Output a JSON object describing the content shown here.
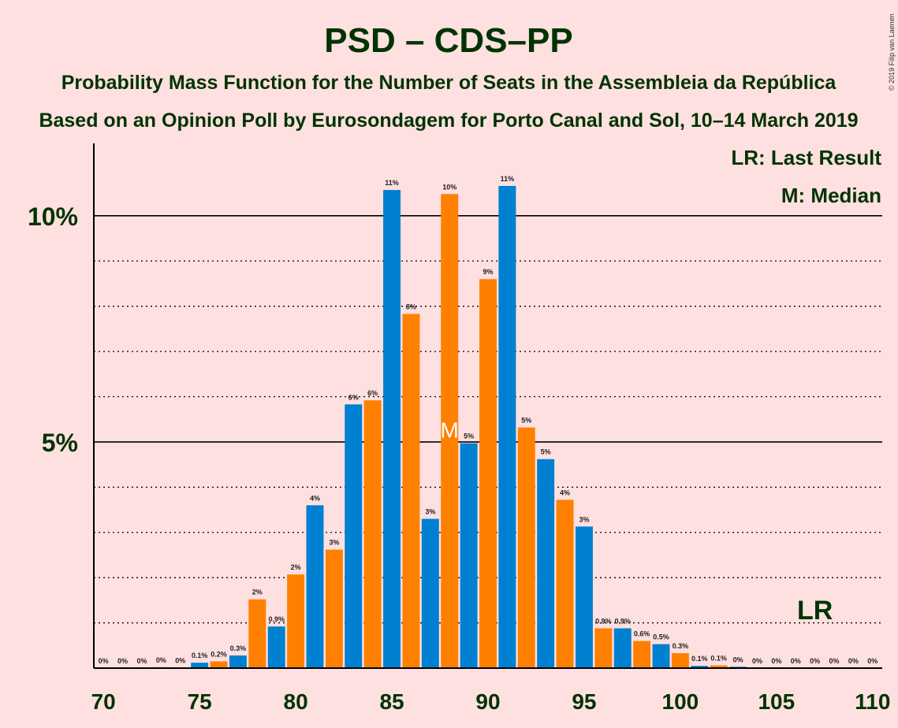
{
  "chart_data": {
    "type": "bar",
    "title": "PSD – CDS–PP",
    "subtitle": "Probability Mass Function for the Number of Seats in the Assembleia da República",
    "subtitle2": "Based on an Opinion Poll by Eurosondagem for Porto Canal and Sol, 10–14 March 2019",
    "copyright": "© 2019 Filip van Laenen",
    "legend": [
      "LR: Last Result",
      "M: Median"
    ],
    "ylim": [
      0,
      11.6
    ],
    "y_ticks": [
      {
        "value": 5,
        "label": "5%"
      },
      {
        "value": 10,
        "label": "10%"
      }
    ],
    "x_ticks": [
      70,
      75,
      80,
      85,
      90,
      95,
      100,
      105,
      110
    ],
    "median_seat": 88,
    "median_marker": "M",
    "last_result_seat": 107,
    "last_result_label": "LR",
    "colors": {
      "blue": "#0080D0",
      "orange": "#FF8000",
      "background": "#FFE0E0",
      "text": "#003300"
    },
    "seats": [
      70,
      71,
      72,
      73,
      74,
      75,
      76,
      77,
      78,
      79,
      80,
      81,
      82,
      83,
      84,
      85,
      86,
      87,
      88,
      89,
      90,
      91,
      92,
      93,
      94,
      95,
      96,
      97,
      98,
      99,
      100,
      101,
      102,
      103,
      104,
      105,
      106,
      107,
      108,
      109,
      110
    ],
    "values": [
      0,
      0,
      0,
      0.02,
      0.01,
      0.12,
      0.15,
      0.28,
      1.52,
      0.92,
      2.07,
      3.6,
      2.62,
      5.83,
      5.92,
      10.57,
      7.83,
      3.3,
      10.48,
      4.97,
      8.6,
      10.66,
      5.32,
      4.62,
      3.72,
      3.13,
      0.88,
      0.88,
      0.6,
      0.53,
      0.33,
      0.05,
      0.06,
      0.03,
      0,
      0,
      0,
      0,
      0,
      0,
      0
    ],
    "labels": [
      "0%",
      "0%",
      "0%",
      "0%",
      "0%",
      "0.1%",
      "0.2%",
      "0.3%",
      "2%",
      "0.9%",
      "2%",
      "4%",
      "3%",
      "6%",
      "6%",
      "11%",
      "8%",
      "3%",
      "10%",
      "5%",
      "9%",
      "11%",
      "5%",
      "5%",
      "4%",
      "3%",
      "0.9%",
      "0.9%",
      "0.6%",
      "0.5%",
      "0.3%",
      "0.1%",
      "0.1%",
      "0%",
      "0%",
      "0%",
      "0%",
      "0%",
      "0%",
      "0%",
      "0%"
    ]
  }
}
